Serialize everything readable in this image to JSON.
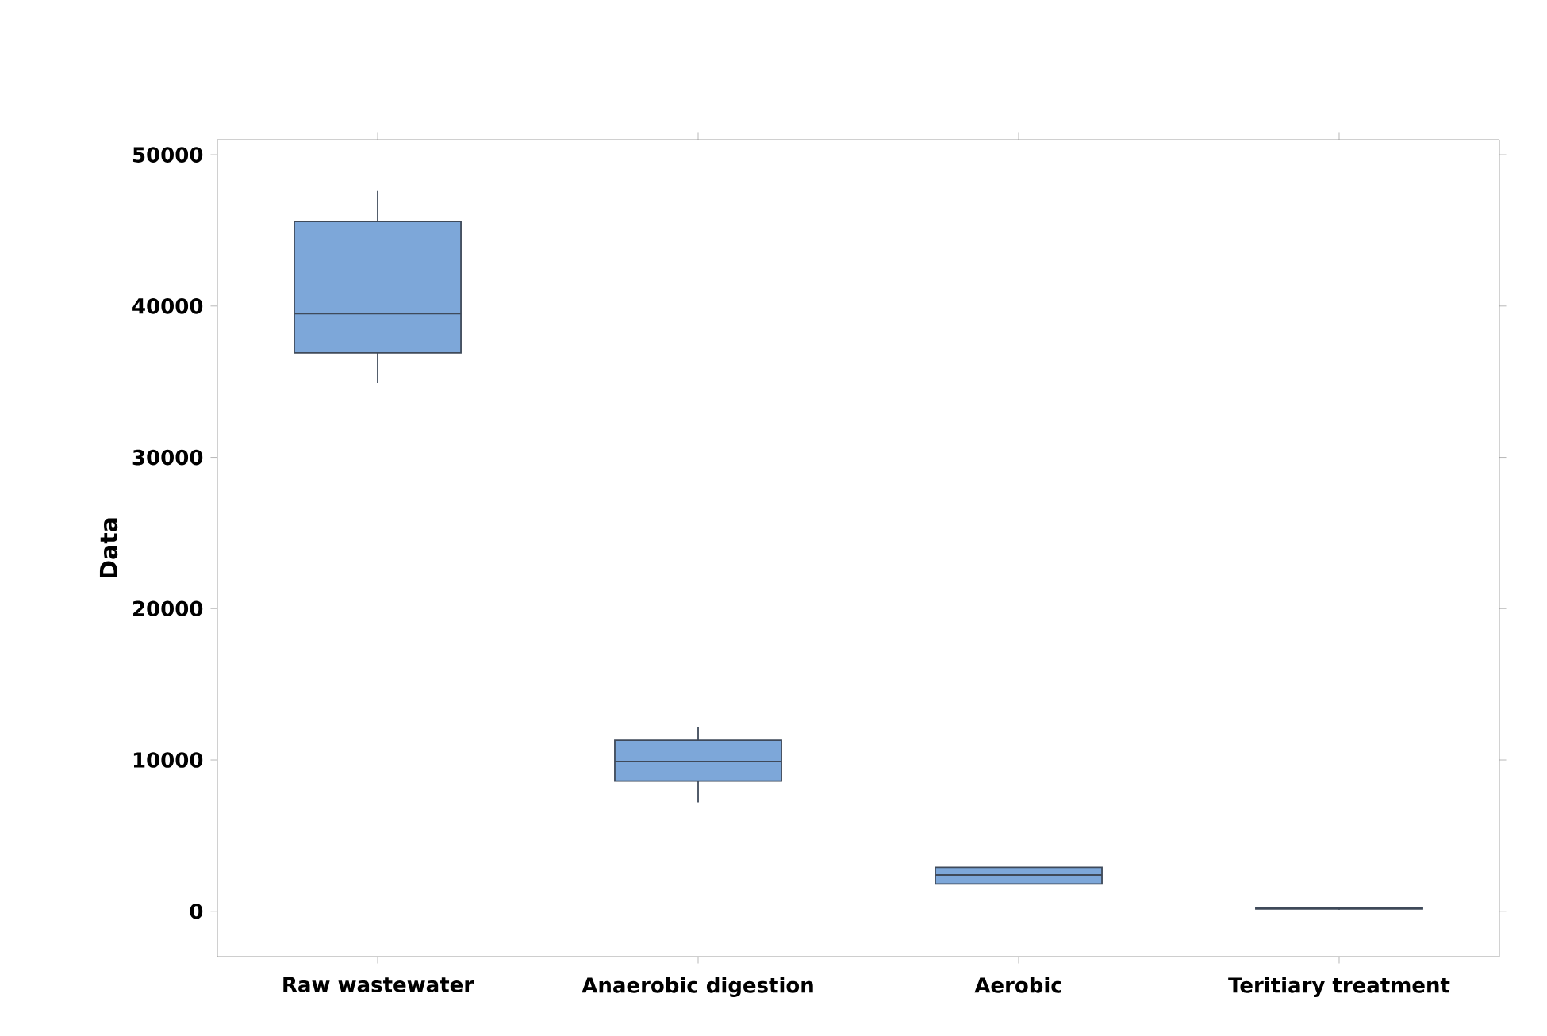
{
  "chart_data": {
    "type": "box",
    "ylabel": "Data",
    "categories": [
      "Raw wastewater",
      "Anaerobic digestion",
      "Aerobic",
      "Teritiary treatment"
    ],
    "boxes": [
      {
        "low": 34900,
        "q1": 36900,
        "median": 39500,
        "q3": 45600,
        "high": 47600
      },
      {
        "low": 7200,
        "q1": 8600,
        "median": 9900,
        "q3": 11300,
        "high": 12200
      },
      {
        "low": 1800,
        "q1": 1800,
        "median": 2400,
        "q3": 2900,
        "high": 2900
      },
      {
        "low": 100,
        "q1": 150,
        "median": 200,
        "q3": 250,
        "high": 300
      }
    ],
    "color": "#7da7d9",
    "ylim": [
      -3000,
      51000
    ],
    "yticks": [
      0,
      10000,
      20000,
      30000,
      40000,
      50000
    ]
  }
}
